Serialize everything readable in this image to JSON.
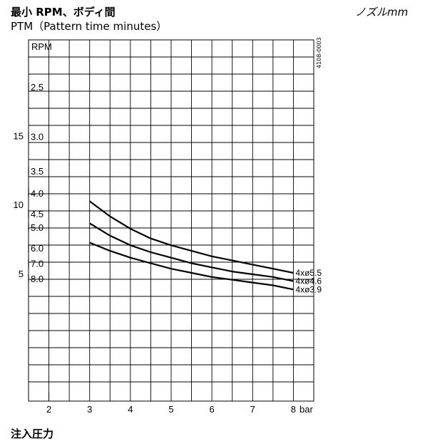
{
  "chart_data": {
    "type": "line",
    "title": "最小 RPM、ボディ間",
    "subtitle": "PTM（Pattern time minutes）",
    "unit_label": "ノズルmm",
    "figure_code": "4108-0003",
    "xlabel": "注入圧力",
    "x_unit": "bar",
    "x_ticks": [
      2,
      3,
      4,
      5,
      6,
      7,
      8
    ],
    "xlim": [
      1.5,
      8.5
    ],
    "rpm_header": "RPM",
    "rpm_ticks": [
      {
        "label": "2.5",
        "ptm": 18.6
      },
      {
        "label": "3.0",
        "ptm": 15.0
      },
      {
        "label": "3.5",
        "ptm": 12.5
      },
      {
        "label": "4.0",
        "ptm": 10.9
      },
      {
        "label": "4.5",
        "ptm": 9.4
      },
      {
        "label": "5.0",
        "ptm": 8.4
      },
      {
        "label": "6.0",
        "ptm": 6.9
      },
      {
        "label": "7.0",
        "ptm": 5.8
      },
      {
        "label": "8.0",
        "ptm": 4.7
      }
    ],
    "ptm_ticks": [
      5,
      10,
      15
    ],
    "ylim": [
      -4.2,
      22
    ],
    "grid": true,
    "series": [
      {
        "name": "4xø5.5",
        "x": [
          3,
          3.5,
          4,
          4.5,
          5,
          5.5,
          6,
          6.5,
          7,
          7.5,
          8
        ],
        "y": [
          10.3,
          9.2,
          8.3,
          7.6,
          7.1,
          6.7,
          6.3,
          6.0,
          5.7,
          5.4,
          5.1
        ]
      },
      {
        "name": "4xø4.6",
        "x": [
          3,
          3.5,
          4,
          4.5,
          5,
          5.5,
          6,
          6.5,
          7,
          7.5,
          8
        ],
        "y": [
          8.7,
          7.8,
          7.1,
          6.6,
          6.2,
          5.8,
          5.5,
          5.2,
          5.0,
          4.8,
          4.5
        ]
      },
      {
        "name": "4xø3.9",
        "x": [
          3,
          3.5,
          4,
          4.5,
          5,
          5.5,
          6,
          6.5,
          7,
          7.5,
          8
        ],
        "y": [
          7.3,
          6.7,
          6.2,
          5.8,
          5.4,
          5.1,
          4.8,
          4.6,
          4.4,
          4.2,
          3.9
        ]
      }
    ]
  }
}
